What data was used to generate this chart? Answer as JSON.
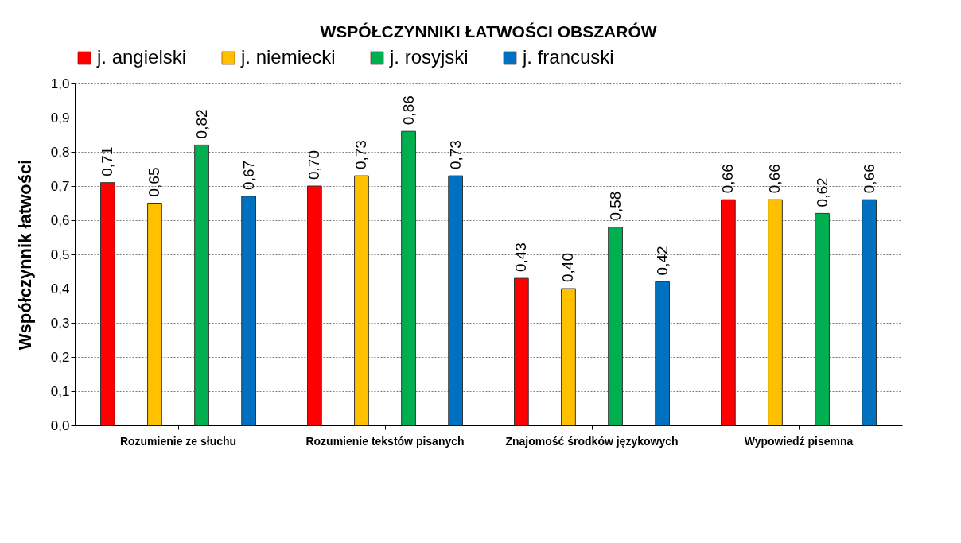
{
  "chart_data": {
    "type": "bar",
    "title": "WSPÓŁCZYNNIKI ŁATWOŚCI OBSZARÓW",
    "ylabel": "Współczynnik łatwości",
    "categories": [
      "Rozumienie ze słuchu",
      "Rozumienie tekstów pisanych",
      "Znajomość środków językowych",
      "Wypowiedź pisemna"
    ],
    "series": [
      {
        "name": "j. angielski",
        "color": "#ff0000",
        "values": [
          0.71,
          0.7,
          0.43,
          0.66
        ],
        "value_labels": [
          "0,71",
          "0,70",
          "0,43",
          "0,66"
        ]
      },
      {
        "name": "j. niemiecki",
        "color": "#ffc000",
        "values": [
          0.65,
          0.73,
          0.4,
          0.66
        ],
        "value_labels": [
          "0,65",
          "0,73",
          "0,40",
          "0,66"
        ]
      },
      {
        "name": "j. rosyjski",
        "color": "#00b050",
        "values": [
          0.82,
          0.86,
          0.58,
          0.62
        ],
        "value_labels": [
          "0,82",
          "0,86",
          "0,58",
          "0,62"
        ]
      },
      {
        "name": "j. francuski",
        "color": "#0070c0",
        "values": [
          0.67,
          0.73,
          0.42,
          0.66
        ],
        "value_labels": [
          "0,67",
          "0,73",
          "0,42",
          "0,66"
        ]
      }
    ],
    "ylim": [
      0,
      1
    ],
    "yticks": [
      {
        "value": 0,
        "label": "0,0"
      },
      {
        "value": 0.1,
        "label": "0,1"
      },
      {
        "value": 0.2,
        "label": "0,2"
      },
      {
        "value": 0.3,
        "label": "0,3"
      },
      {
        "value": 0.4,
        "label": "0,4"
      },
      {
        "value": 0.5,
        "label": "0,5"
      },
      {
        "value": 0.6,
        "label": "0,6"
      },
      {
        "value": 0.7,
        "label": "0,7"
      },
      {
        "value": 0.8,
        "label": "0,8"
      },
      {
        "value": 0.9,
        "label": "0,9"
      },
      {
        "value": 1,
        "label": "1,0"
      }
    ],
    "grid": "y",
    "legend": "top"
  }
}
